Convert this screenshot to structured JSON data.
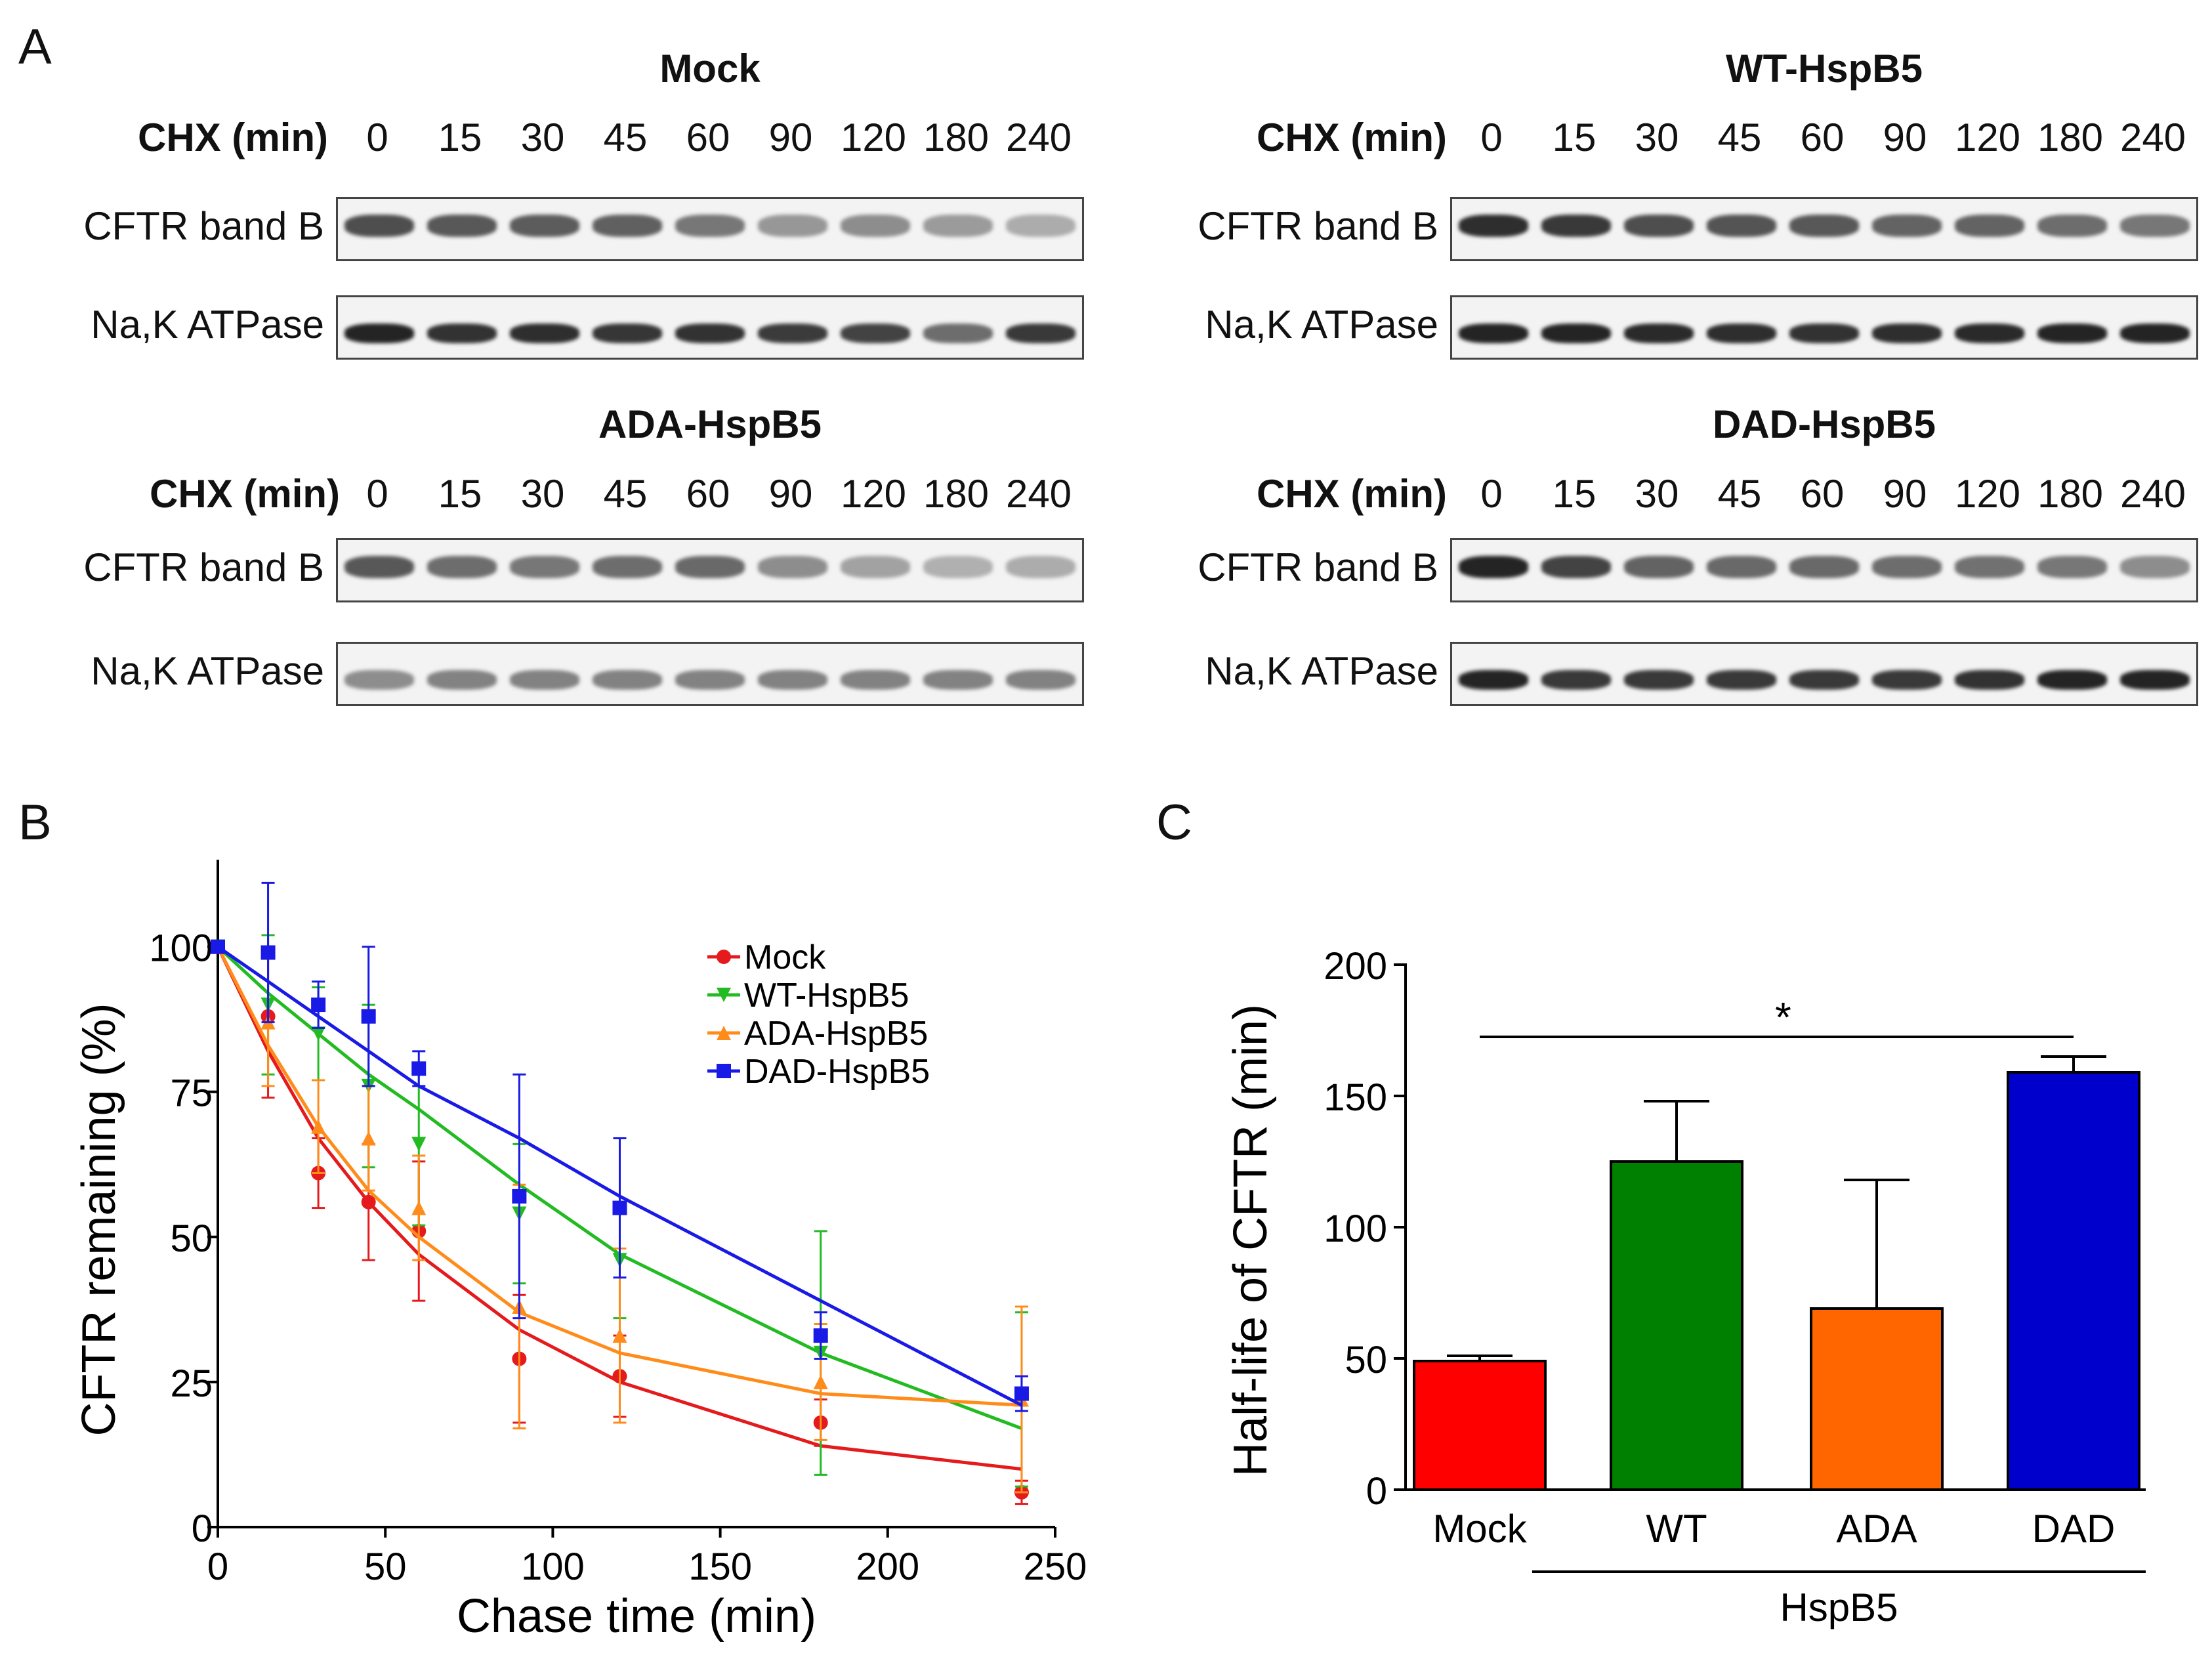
{
  "panel_labels": {
    "a": "A",
    "b": "B",
    "c": "C"
  },
  "blots": [
    {
      "title": "Mock",
      "chx_label": "CHX (min)",
      "timepoints": [
        "0",
        "15",
        "30",
        "45",
        "60",
        "90",
        "120",
        "180",
        "240"
      ],
      "row1_label": "CFTR band B",
      "row2_label": "Na,K ATPase",
      "band_b_intensity": [
        0.75,
        0.7,
        0.68,
        0.66,
        0.55,
        0.4,
        0.45,
        0.38,
        0.3
      ],
      "atpase_intensity": [
        0.95,
        0.88,
        0.9,
        0.86,
        0.88,
        0.84,
        0.8,
        0.6,
        0.85
      ]
    },
    {
      "title": "WT-HspB5",
      "chx_label": "CHX (min)",
      "timepoints": [
        "0",
        "15",
        "30",
        "45",
        "60",
        "90",
        "120",
        "180",
        "240"
      ],
      "row1_label": "CFTR band B",
      "row2_label": "Na,K ATPase",
      "band_b_intensity": [
        0.9,
        0.85,
        0.75,
        0.72,
        0.7,
        0.65,
        0.65,
        0.6,
        0.55
      ],
      "atpase_intensity": [
        0.95,
        0.95,
        0.92,
        0.9,
        0.88,
        0.9,
        0.92,
        0.95,
        0.95
      ]
    },
    {
      "title": "ADA-HspB5",
      "chx_label": "CHX (min)",
      "timepoints": [
        "0",
        "15",
        "30",
        "45",
        "60",
        "90",
        "120",
        "180",
        "240"
      ],
      "row1_label": "CFTR band B",
      "row2_label": "Na,K ATPase",
      "band_b_intensity": [
        0.7,
        0.6,
        0.55,
        0.6,
        0.62,
        0.45,
        0.35,
        0.28,
        0.3
      ],
      "atpase_intensity": [
        0.45,
        0.5,
        0.5,
        0.5,
        0.5,
        0.5,
        0.5,
        0.5,
        0.5
      ]
    },
    {
      "title": "DAD-HspB5",
      "chx_label": "CHX (min)",
      "timepoints": [
        "0",
        "15",
        "30",
        "45",
        "60",
        "90",
        "120",
        "180",
        "240"
      ],
      "row1_label": "CFTR band B",
      "row2_label": "Na,K ATPase",
      "band_b_intensity": [
        0.95,
        0.8,
        0.65,
        0.62,
        0.62,
        0.6,
        0.58,
        0.55,
        0.45
      ],
      "atpase_intensity": [
        0.95,
        0.85,
        0.85,
        0.85,
        0.85,
        0.85,
        0.88,
        0.95,
        0.95
      ]
    }
  ],
  "chart_data": [
    {
      "panel": "B",
      "type": "line",
      "xlabel": "Chase time (min)",
      "ylabel": "CFTR remaining (%)",
      "xlim": [
        0,
        250
      ],
      "ylim": [
        0,
        115
      ],
      "xticks": [
        "0",
        "50",
        "100",
        "150",
        "200",
        "250"
      ],
      "yticks": [
        "0",
        "25",
        "50",
        "75",
        "100"
      ],
      "xtick_values": [
        0,
        50,
        100,
        150,
        200,
        250
      ],
      "ytick_values": [
        0,
        25,
        50,
        75,
        100
      ],
      "legend_position": "top-right",
      "series": [
        {
          "name": "Mock",
          "color": "#e41a1c",
          "marker": "circle",
          "x": [
            0,
            15,
            30,
            45,
            60,
            90,
            120,
            180,
            240
          ],
          "y": [
            100,
            88,
            61,
            56,
            51,
            29,
            26,
            18,
            6
          ],
          "err": [
            0,
            14,
            6,
            10,
            12,
            11,
            7,
            4,
            2
          ],
          "fit": [
            100,
            82,
            67,
            56,
            47,
            34,
            25,
            14,
            10
          ]
        },
        {
          "name": "WT-HspB5",
          "color": "#22bb22",
          "marker": "triangle-down",
          "x": [
            0,
            15,
            30,
            45,
            60,
            90,
            120,
            180,
            240
          ],
          "y": [
            100,
            90,
            85,
            76,
            66,
            54,
            46,
            30,
            22
          ],
          "err": [
            0,
            12,
            8,
            14,
            14,
            12,
            10,
            21,
            15
          ],
          "fit": [
            100,
            92,
            85,
            78,
            72,
            59,
            47,
            30,
            17
          ]
        },
        {
          "name": "ADA-HspB5",
          "color": "#ff8c1a",
          "marker": "triangle-up",
          "x": [
            0,
            15,
            30,
            45,
            60,
            90,
            120,
            180,
            240
          ],
          "y": [
            100,
            87,
            69,
            67,
            55,
            38,
            33,
            25,
            22
          ],
          "err": [
            0,
            11,
            8,
            9,
            9,
            21,
            15,
            10,
            16
          ],
          "fit": [
            100,
            83,
            69,
            58,
            50,
            37,
            30,
            23,
            21
          ]
        },
        {
          "name": "DAD-HspB5",
          "color": "#1a1ae6",
          "marker": "square",
          "x": [
            0,
            15,
            30,
            45,
            60,
            90,
            120,
            180,
            240
          ],
          "y": [
            100,
            99,
            90,
            88,
            79,
            57,
            55,
            33,
            23
          ],
          "err": [
            0,
            12,
            4,
            12,
            3,
            21,
            12,
            4,
            3
          ],
          "fit": [
            100,
            94,
            88,
            82,
            76,
            67,
            57,
            39,
            21
          ]
        }
      ]
    },
    {
      "panel": "C",
      "type": "bar",
      "ylabel": "Half-life of CFTR (min)",
      "ylim": [
        0,
        200
      ],
      "yticks": [
        "0",
        "50",
        "100",
        "150",
        "200"
      ],
      "ytick_values": [
        0,
        50,
        100,
        150,
        200
      ],
      "categories": [
        "Mock",
        "WT",
        "ADA",
        "DAD"
      ],
      "values": [
        49,
        125,
        69,
        159
      ],
      "errors": [
        2,
        23,
        49,
        6
      ],
      "colors": [
        "#ff0000",
        "#008000",
        "#ff6600",
        "#0000cc"
      ],
      "group_label": "HspB5",
      "significance": "*"
    }
  ]
}
